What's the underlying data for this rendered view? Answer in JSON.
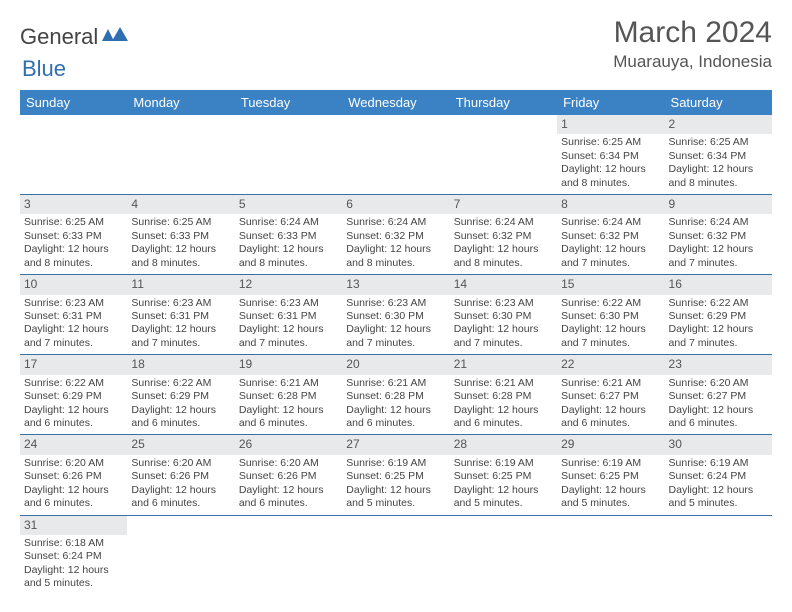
{
  "brand": {
    "part1": "General",
    "part2": "Blue"
  },
  "title": "March 2024",
  "location": "Muarauya, Indonesia",
  "colors": {
    "header_bg": "#3b82c4",
    "header_text": "#ffffff",
    "row_divider": "#3b6fa8",
    "daynum_bg": "#e7e9eb",
    "text": "#444444",
    "logo_blue": "#2f6fb0"
  },
  "weekdays": [
    "Sunday",
    "Monday",
    "Tuesday",
    "Wednesday",
    "Thursday",
    "Friday",
    "Saturday"
  ],
  "weeks": [
    [
      null,
      null,
      null,
      null,
      null,
      {
        "n": "1",
        "sr": "6:25 AM",
        "ss": "6:34 PM",
        "dl": "12 hours and 8 minutes."
      },
      {
        "n": "2",
        "sr": "6:25 AM",
        "ss": "6:34 PM",
        "dl": "12 hours and 8 minutes."
      }
    ],
    [
      {
        "n": "3",
        "sr": "6:25 AM",
        "ss": "6:33 PM",
        "dl": "12 hours and 8 minutes."
      },
      {
        "n": "4",
        "sr": "6:25 AM",
        "ss": "6:33 PM",
        "dl": "12 hours and 8 minutes."
      },
      {
        "n": "5",
        "sr": "6:24 AM",
        "ss": "6:33 PM",
        "dl": "12 hours and 8 minutes."
      },
      {
        "n": "6",
        "sr": "6:24 AM",
        "ss": "6:32 PM",
        "dl": "12 hours and 8 minutes."
      },
      {
        "n": "7",
        "sr": "6:24 AM",
        "ss": "6:32 PM",
        "dl": "12 hours and 8 minutes."
      },
      {
        "n": "8",
        "sr": "6:24 AM",
        "ss": "6:32 PM",
        "dl": "12 hours and 7 minutes."
      },
      {
        "n": "9",
        "sr": "6:24 AM",
        "ss": "6:32 PM",
        "dl": "12 hours and 7 minutes."
      }
    ],
    [
      {
        "n": "10",
        "sr": "6:23 AM",
        "ss": "6:31 PM",
        "dl": "12 hours and 7 minutes."
      },
      {
        "n": "11",
        "sr": "6:23 AM",
        "ss": "6:31 PM",
        "dl": "12 hours and 7 minutes."
      },
      {
        "n": "12",
        "sr": "6:23 AM",
        "ss": "6:31 PM",
        "dl": "12 hours and 7 minutes."
      },
      {
        "n": "13",
        "sr": "6:23 AM",
        "ss": "6:30 PM",
        "dl": "12 hours and 7 minutes."
      },
      {
        "n": "14",
        "sr": "6:23 AM",
        "ss": "6:30 PM",
        "dl": "12 hours and 7 minutes."
      },
      {
        "n": "15",
        "sr": "6:22 AM",
        "ss": "6:30 PM",
        "dl": "12 hours and 7 minutes."
      },
      {
        "n": "16",
        "sr": "6:22 AM",
        "ss": "6:29 PM",
        "dl": "12 hours and 7 minutes."
      }
    ],
    [
      {
        "n": "17",
        "sr": "6:22 AM",
        "ss": "6:29 PM",
        "dl": "12 hours and 6 minutes."
      },
      {
        "n": "18",
        "sr": "6:22 AM",
        "ss": "6:29 PM",
        "dl": "12 hours and 6 minutes."
      },
      {
        "n": "19",
        "sr": "6:21 AM",
        "ss": "6:28 PM",
        "dl": "12 hours and 6 minutes."
      },
      {
        "n": "20",
        "sr": "6:21 AM",
        "ss": "6:28 PM",
        "dl": "12 hours and 6 minutes."
      },
      {
        "n": "21",
        "sr": "6:21 AM",
        "ss": "6:28 PM",
        "dl": "12 hours and 6 minutes."
      },
      {
        "n": "22",
        "sr": "6:21 AM",
        "ss": "6:27 PM",
        "dl": "12 hours and 6 minutes."
      },
      {
        "n": "23",
        "sr": "6:20 AM",
        "ss": "6:27 PM",
        "dl": "12 hours and 6 minutes."
      }
    ],
    [
      {
        "n": "24",
        "sr": "6:20 AM",
        "ss": "6:26 PM",
        "dl": "12 hours and 6 minutes."
      },
      {
        "n": "25",
        "sr": "6:20 AM",
        "ss": "6:26 PM",
        "dl": "12 hours and 6 minutes."
      },
      {
        "n": "26",
        "sr": "6:20 AM",
        "ss": "6:26 PM",
        "dl": "12 hours and 6 minutes."
      },
      {
        "n": "27",
        "sr": "6:19 AM",
        "ss": "6:25 PM",
        "dl": "12 hours and 5 minutes."
      },
      {
        "n": "28",
        "sr": "6:19 AM",
        "ss": "6:25 PM",
        "dl": "12 hours and 5 minutes."
      },
      {
        "n": "29",
        "sr": "6:19 AM",
        "ss": "6:25 PM",
        "dl": "12 hours and 5 minutes."
      },
      {
        "n": "30",
        "sr": "6:19 AM",
        "ss": "6:24 PM",
        "dl": "12 hours and 5 minutes."
      }
    ],
    [
      {
        "n": "31",
        "sr": "6:18 AM",
        "ss": "6:24 PM",
        "dl": "12 hours and 5 minutes."
      },
      null,
      null,
      null,
      null,
      null,
      null
    ]
  ],
  "labels": {
    "sunrise": "Sunrise:",
    "sunset": "Sunset:",
    "daylight": "Daylight:"
  }
}
